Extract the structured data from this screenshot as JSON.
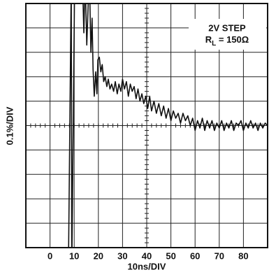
{
  "chart_data": {
    "type": "line",
    "xlabel": "10ns/DIV",
    "ylabel": "0.1%/DIV",
    "annotations": [
      "2V STEP",
      [
        "R",
        "L",
        " = 150Ω"
      ]
    ],
    "xlim": [
      -10,
      90
    ],
    "xticks": [
      0,
      10,
      20,
      30,
      40,
      50,
      60,
      70,
      80
    ],
    "ylim": [
      -0.5,
      0.5
    ],
    "yticks": [
      -0.4,
      -0.3,
      -0.2,
      -0.1,
      0,
      0.1,
      0.2,
      0.3,
      0.4
    ],
    "grid": true,
    "color": "#111",
    "x": [
      7.6,
      8.8,
      9.0,
      10.2,
      13.4,
      14.0,
      14.5,
      15.2,
      15.8,
      16.3,
      16.9,
      17.4,
      17.8,
      18.3,
      18.9,
      19.4,
      19.8,
      20.4,
      21.0,
      21.6,
      22.2,
      22.8,
      23.5,
      24.1,
      24.8,
      25.5,
      26.3,
      27.0,
      27.8,
      28.5,
      29.3,
      30.0,
      30.8,
      31.6,
      32.4,
      33.2,
      34.0,
      34.8,
      35.6,
      36.4,
      37.2,
      38.0,
      38.8,
      39.6,
      40.4,
      41.2,
      42.0,
      43.0,
      44.0,
      45.0,
      46.0,
      47.0,
      48.0,
      49.0,
      50.0,
      51.0,
      52.0,
      53.0,
      54.0,
      55.0,
      56.0,
      57.0,
      58.0,
      59.0,
      60.0,
      61.0,
      62.0,
      63.0,
      64.0,
      65.0,
      66.0,
      67.0,
      68.0,
      69.0,
      70.0,
      71.0,
      72.0,
      73.0,
      74.0,
      75.0,
      76.0,
      77.0,
      78.0,
      79.0,
      80.0,
      81.0,
      82.0,
      83.0,
      84.0,
      85.0,
      86.0,
      87.0,
      88.0,
      89.0,
      90.0
    ],
    "values": [
      -0.6,
      0.6,
      -0.6,
      0.6,
      0.6,
      0.38,
      0.6,
      0.33,
      0.5,
      0.6,
      0.3,
      0.44,
      0.23,
      0.12,
      0.22,
      0.13,
      0.27,
      0.28,
      0.22,
      0.25,
      0.18,
      0.2,
      0.16,
      0.19,
      0.15,
      0.17,
      0.14,
      0.18,
      0.13,
      0.17,
      0.14,
      0.19,
      0.15,
      0.18,
      0.12,
      0.17,
      0.14,
      0.16,
      0.11,
      0.15,
      0.1,
      0.13,
      0.09,
      0.12,
      0.07,
      0.12,
      0.06,
      0.1,
      0.05,
      0.09,
      0.04,
      0.08,
      0.03,
      0.07,
      0.02,
      0.06,
      0.03,
      0.05,
      0.01,
      0.05,
      0.02,
      0.04,
      0.0,
      0.03,
      -0.02,
      0.02,
      -0.01,
      0.03,
      -0.02,
      0.02,
      -0.01,
      0.02,
      -0.02,
      0.01,
      -0.01,
      0.02,
      -0.02,
      0.01,
      -0.01,
      0.02,
      -0.02,
      0.01,
      0.0,
      0.02,
      -0.02,
      0.01,
      -0.01,
      0.02,
      -0.01,
      0.01,
      -0.02,
      0.01,
      -0.01,
      0.01,
      0.0
    ]
  }
}
